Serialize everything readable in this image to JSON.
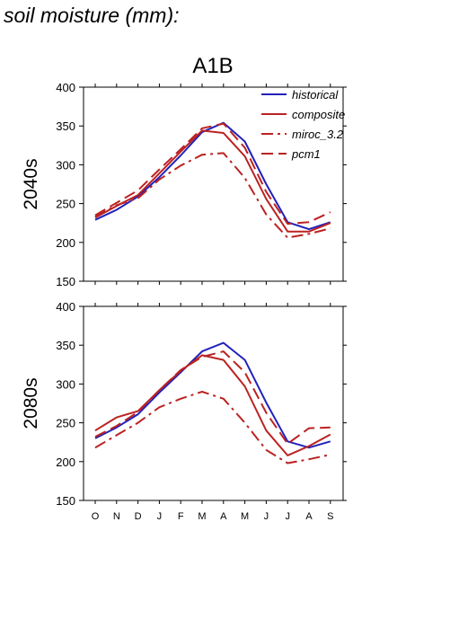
{
  "title": "soil moisture (mm):",
  "chart_data": {
    "type": "line",
    "scenario": "A1B",
    "x": [
      "O",
      "N",
      "D",
      "J",
      "F",
      "M",
      "A",
      "M",
      "J",
      "J",
      "A",
      "S"
    ],
    "ylim": [
      150,
      400
    ],
    "yticks": [
      150,
      200,
      250,
      300,
      350,
      400
    ],
    "legend_position": "top-right",
    "colors": {
      "historical": "#2222bb",
      "projection": "#bb2222"
    },
    "panels": [
      {
        "label": "2040s",
        "series": [
          {
            "name": "historical",
            "style": "solid",
            "color": "#2222bb",
            "values": [
              229,
              242,
              259,
              284,
              312,
              342,
              354,
              330,
              275,
              226,
              217,
              226
            ]
          },
          {
            "name": "composite",
            "style": "solid",
            "color": "#bb2222",
            "values": [
              232,
              247,
              261,
              289,
              317,
              344,
              341,
              311,
              256,
              214,
              214,
              225
            ]
          },
          {
            "name": "miroc_3.2",
            "style": "dashdot",
            "color": "#bb2222",
            "values": [
              233,
              248,
              257,
              281,
              299,
              313,
              315,
              283,
              236,
              206,
              211,
              218
            ]
          },
          {
            "name": "pcm1",
            "style": "dash",
            "color": "#bb2222",
            "values": [
              235,
              251,
              267,
              294,
              320,
              347,
              353,
              322,
              265,
              224,
              226,
              239
            ]
          }
        ]
      },
      {
        "label": "2080s",
        "series": [
          {
            "name": "historical",
            "style": "solid",
            "color": "#2222bb",
            "values": [
              230,
              244,
              261,
              289,
              315,
              342,
              353,
              331,
              276,
              226,
              218,
              226
            ]
          },
          {
            "name": "composite",
            "style": "solid",
            "color": "#bb2222",
            "values": [
              240,
              257,
              265,
              292,
              317,
              337,
              331,
              297,
              240,
              208,
              220,
              235
            ]
          },
          {
            "name": "miroc_3.2",
            "style": "dashdot",
            "color": "#bb2222",
            "values": [
              218,
              234,
              250,
              270,
              281,
              290,
              281,
              250,
              215,
              198,
              203,
              209
            ]
          },
          {
            "name": "pcm1",
            "style": "dash",
            "color": "#bb2222",
            "values": [
              232,
              246,
              264,
              292,
              318,
              335,
              342,
              315,
              263,
              223,
              243,
              244
            ]
          }
        ]
      }
    ]
  }
}
